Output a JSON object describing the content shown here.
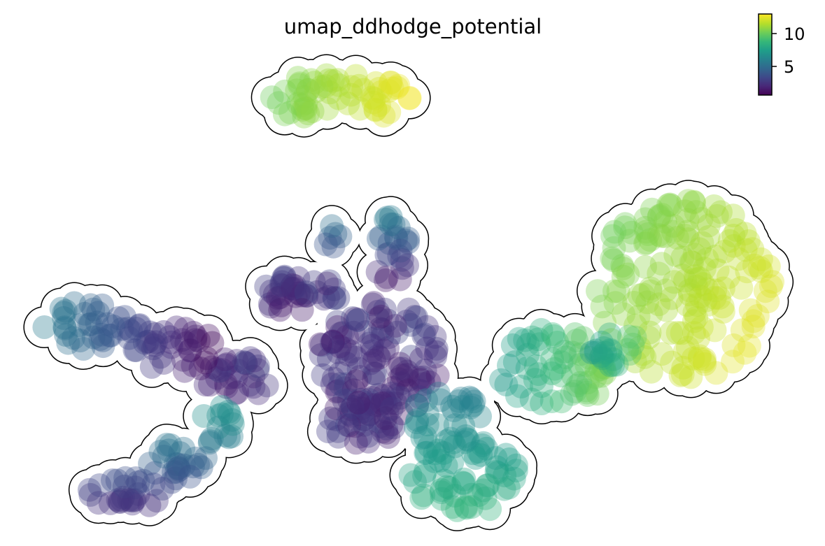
{
  "chart_data": {
    "type": "scatter",
    "title": "umap_ddhodge_potential",
    "xlabel": "",
    "ylabel": "",
    "axes_visible": false,
    "grid": false,
    "legend": "none",
    "colormap": "viridis",
    "colorbar": {
      "placement": "top-right",
      "min": 1,
      "max": 13,
      "ticks": [
        5,
        10
      ],
      "tick_labels": [
        "5",
        "10"
      ]
    },
    "point_style": "large semi-transparent dots with black outline around each cluster",
    "clusters": [
      {
        "id": "top-island",
        "potential_range": [
          10,
          13
        ]
      },
      {
        "id": "right-blob",
        "potential_range": [
          10,
          13
        ]
      },
      {
        "id": "center-trunk",
        "potential_range": [
          1,
          6
        ]
      },
      {
        "id": "left-arm",
        "potential_range": [
          1,
          6
        ]
      },
      {
        "id": "lower-left-arm",
        "potential_range": [
          2,
          7
        ]
      },
      {
        "id": "bottom-lobe",
        "potential_range": [
          6,
          9
        ]
      },
      {
        "id": "bridge-to-right",
        "potential_range": [
          7,
          11
        ]
      }
    ]
  },
  "colors": {
    "viridis": [
      "#440154",
      "#482878",
      "#3e4989",
      "#31688e",
      "#26828e",
      "#1f9e89",
      "#35b779",
      "#6ece58",
      "#b5de2b",
      "#fde725"
    ],
    "outline": "#000000",
    "background": "#ffffff"
  }
}
